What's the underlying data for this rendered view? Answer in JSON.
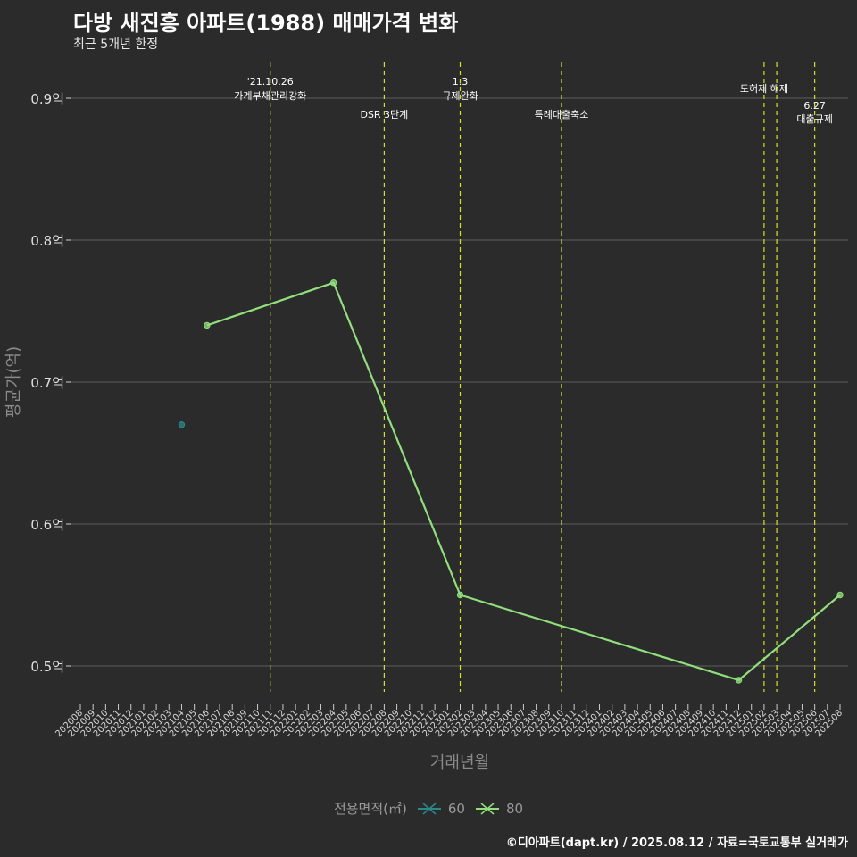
{
  "title": "다방 새진흥 아파트(1988) 매매가격 변화",
  "subtitle": "최근 5개년 한정",
  "caption": "©디아파트(dapt.kr) / 2025.08.12 / 자료=국토교통부 실거래가",
  "colors": {
    "background": "#2b2b2b",
    "grid": "#5e5e5e",
    "event_line": "#d6e21c",
    "series_60": "#2a8a8a",
    "series_80": "#8fe07a"
  },
  "chart_data": {
    "type": "line",
    "title": "다방 새진흥 아파트(1988) 매매가격 변화",
    "subtitle": "최근 5개년 한정",
    "xlabel": "거래년월",
    "ylabel": "평균가(억)",
    "ylim": [
      0.47,
      0.925
    ],
    "y_ticks": [
      0.5,
      0.6,
      0.7,
      0.8,
      0.9
    ],
    "y_tick_labels": [
      "0.5억",
      "0.6억",
      "0.7억",
      "0.8억",
      "0.9억"
    ],
    "categories": [
      "202008",
      "202009",
      "202010",
      "202011",
      "202012",
      "202101",
      "202102",
      "202103",
      "202104",
      "202105",
      "202106",
      "202107",
      "202108",
      "202109",
      "202110",
      "202111",
      "202112",
      "202201",
      "202202",
      "202203",
      "202204",
      "202205",
      "202206",
      "202207",
      "202208",
      "202209",
      "202210",
      "202211",
      "202212",
      "202301",
      "202302",
      "202303",
      "202304",
      "202305",
      "202306",
      "202307",
      "202308",
      "202309",
      "202310",
      "202311",
      "202312",
      "202401",
      "202402",
      "202403",
      "202404",
      "202405",
      "202406",
      "202407",
      "202408",
      "202409",
      "202410",
      "202411",
      "202412",
      "202501",
      "202502",
      "202503",
      "202504",
      "202505",
      "202506",
      "202507",
      "202508"
    ],
    "legend_title": "전용면적(㎡)",
    "series": [
      {
        "name": "60",
        "color": "#2a8a8a",
        "points": [
          {
            "x": "202104",
            "y": 0.67
          }
        ]
      },
      {
        "name": "80",
        "color": "#8fe07a",
        "points": [
          {
            "x": "202106",
            "y": 0.74
          },
          {
            "x": "202204",
            "y": 0.77
          },
          {
            "x": "202302",
            "y": 0.55
          },
          {
            "x": "202412",
            "y": 0.49
          },
          {
            "x": "202508",
            "y": 0.55
          }
        ]
      }
    ],
    "events": [
      {
        "x": "202111",
        "label_lines": [
          "'21.10.26",
          "가계부채관리강화"
        ],
        "row": 0
      },
      {
        "x": "202208",
        "label_lines": [
          "DSR 3단계"
        ],
        "row": 1
      },
      {
        "x": "202302",
        "label_lines": [
          "1.3",
          "규제완화"
        ],
        "row": 0
      },
      {
        "x": "202310",
        "label_lines": [
          "특례대출축소"
        ],
        "row": 1
      },
      {
        "x": "202502",
        "label_lines": [
          "토허제 해제"
        ],
        "row": 0.5
      },
      {
        "x": "202503",
        "label_lines": [],
        "row": 0
      },
      {
        "x": "202506",
        "label_lines": [
          "6.27",
          "대출규제"
        ],
        "row": 1
      }
    ]
  }
}
